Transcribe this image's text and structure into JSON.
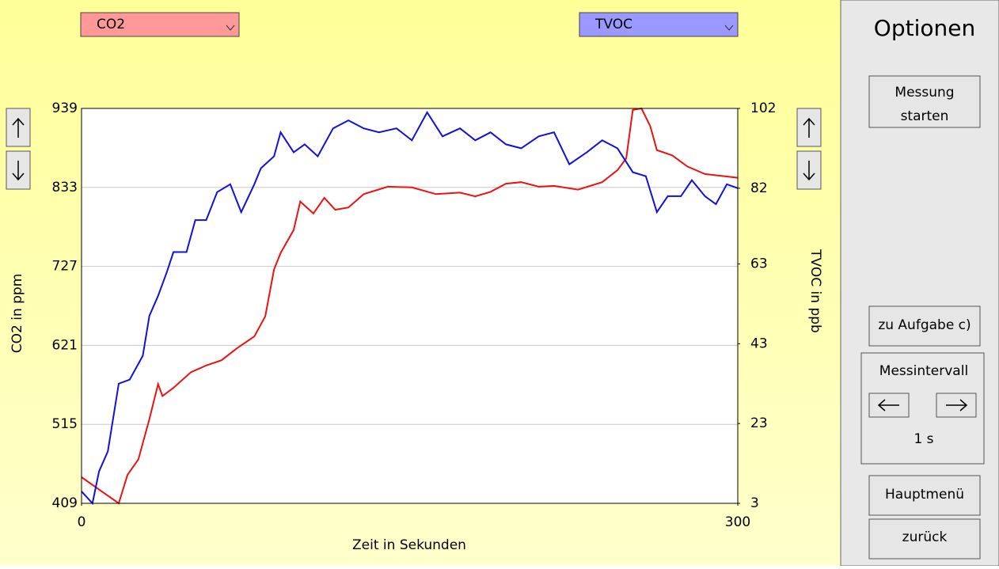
{
  "chart_data": {
    "type": "line",
    "xlabel": "Zeit in Sekunden",
    "ylabel": "CO2 in ppm",
    "y2label": "TVOC in ppb",
    "xlim": [
      0,
      300
    ],
    "xticks": [
      0,
      300
    ],
    "ylim": [
      409,
      939
    ],
    "yticks": [
      409,
      515,
      621,
      727,
      833,
      939
    ],
    "y2lim": [
      3,
      102
    ],
    "y2ticks": [
      3,
      23,
      43,
      63,
      82,
      102
    ],
    "grid": true,
    "series": [
      {
        "name": "CO2",
        "color": "#ee1111",
        "x": [
          0,
          17,
          21,
          26,
          31,
          35,
          37,
          42,
          50,
          57,
          64,
          71,
          79,
          84,
          88,
          91,
          97,
          100,
          106,
          111,
          116,
          122,
          129,
          140,
          151,
          162,
          173,
          180,
          187,
          194,
          201,
          209,
          216,
          227,
          238,
          245,
          249,
          252,
          256,
          260,
          263,
          270,
          277,
          285,
          300
        ],
        "values": [
          444,
          409,
          447,
          468,
          522,
          569,
          553,
          564,
          585,
          594,
          601,
          617,
          633,
          660,
          723,
          745,
          776,
          814,
          798,
          819,
          803,
          806,
          824,
          834,
          833,
          824,
          826,
          821,
          827,
          838,
          840,
          834,
          835,
          830,
          840,
          856,
          872,
          937,
          939,
          915,
          883,
          876,
          861,
          851,
          846
        ]
      },
      {
        "name": "TVOC",
        "color": "#1111dd",
        "axis": "y2",
        "x": [
          0,
          5,
          8,
          12,
          17,
          22,
          28,
          31,
          35,
          39,
          42,
          48,
          52,
          57,
          62,
          68,
          73,
          79,
          82,
          88,
          91,
          97,
          102,
          108,
          115,
          122,
          129,
          136,
          144,
          151,
          158,
          165,
          173,
          180,
          187,
          194,
          201,
          209,
          216,
          223,
          231,
          238,
          245,
          252,
          258,
          263,
          268,
          274,
          279,
          285,
          290,
          295,
          300
        ],
        "values": [
          6,
          3,
          11,
          16,
          33,
          34,
          40,
          50,
          55,
          61,
          66,
          66,
          74,
          74,
          81,
          83,
          76,
          83,
          87,
          90,
          96,
          91,
          93,
          90,
          97,
          99,
          97,
          96,
          97,
          94,
          101,
          95,
          97,
          94,
          96,
          93,
          92,
          95,
          96,
          88,
          91,
          94,
          92,
          86,
          85,
          76,
          80,
          80,
          84,
          80,
          78,
          83,
          82
        ]
      }
    ]
  },
  "ui": {
    "left_select": "CO2",
    "right_select": "TVOC",
    "sidebar_title": "Optionen",
    "start_button": [
      "Messung",
      "starten"
    ],
    "task_button": "zu Aufgabe c)",
    "interval_label": "Messintervall",
    "interval_value": "1 s",
    "menu_button": "Hauptmenü",
    "back_button": "zurück"
  }
}
